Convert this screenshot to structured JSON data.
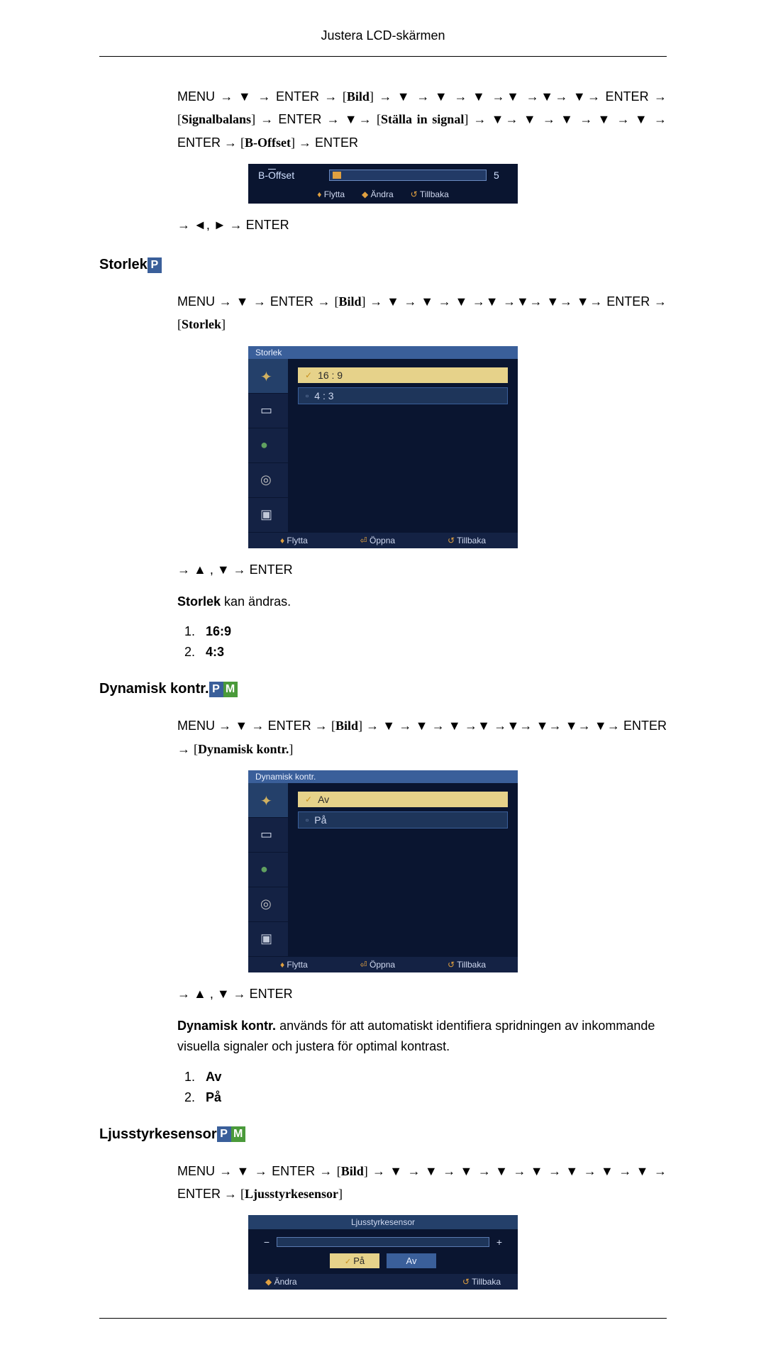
{
  "page_header": "Justera LCD-skärmen",
  "nav1": {
    "full": "MENU → ▼ → ENTER → [Bild] → ▼ → ▼ → ▼ →▼ →▼→ ▼→ ENTER → [Signalbalans] → ENTER → ▼→ [Ställa in signal] → ▼→ ▼ → ▼ → ▼ → ▼ → ENTER → [B-Offset] → ENTER"
  },
  "osd_boffset": {
    "label": "B-Offset",
    "value": "5",
    "footer": {
      "a": "Flytta",
      "b": "Ändra",
      "c": "Tillbaka"
    }
  },
  "nav1b": "→ ◄, ► → ENTER",
  "section_storlek": "Storlek",
  "nav2": "MENU → ▼ → ENTER → [Bild] → ▼ → ▼ → ▼ →▼ →▼→ ▼→ ▼→ ENTER → [Storlek]",
  "osd_storlek": {
    "title": "Storlek",
    "opt1": "16 : 9",
    "opt2": "4 : 3",
    "footer": {
      "a": "Flytta",
      "b": "Öppna",
      "c": "Tillbaka"
    }
  },
  "nav2b": "→ ▲ , ▼ → ENTER",
  "storlek_text": "Storlek kan ändras.",
  "storlek_opts": {
    "1": "16:9",
    "2": "4:3"
  },
  "section_dyn": "Dynamisk kontr.",
  "nav3": "MENU → ▼ → ENTER → [Bild] → ▼ → ▼ → ▼ →▼ →▼→ ▼→ ▼→ ▼→ ENTER → [Dynamisk kontr.]",
  "osd_dyn": {
    "title": "Dynamisk kontr.",
    "opt1": "Av",
    "opt2": "På",
    "footer": {
      "a": "Flytta",
      "b": "Öppna",
      "c": "Tillbaka"
    }
  },
  "nav3b": "→ ▲ , ▼ → ENTER",
  "dyn_text_bold": "Dynamisk kontr.",
  "dyn_text_rest": " används för att automatiskt identifiera spridningen av inkommande visuella signaler och justera för optimal kontrast.",
  "dyn_opts": {
    "1": "Av",
    "2": "På"
  },
  "section_ljus": "Ljusstyrkesensor",
  "nav4": "MENU → ▼ → ENTER → [Bild] → ▼ → ▼ → ▼ → ▼ → ▼ → ▼ → ▼ → ▼ → ENTER → [Ljusstyrkesensor]",
  "osd_ljus": {
    "title": "Ljusstyrkesensor",
    "on": "På",
    "off": "Av",
    "footer": {
      "a": "Ändra",
      "b": "Tillbaka"
    }
  }
}
